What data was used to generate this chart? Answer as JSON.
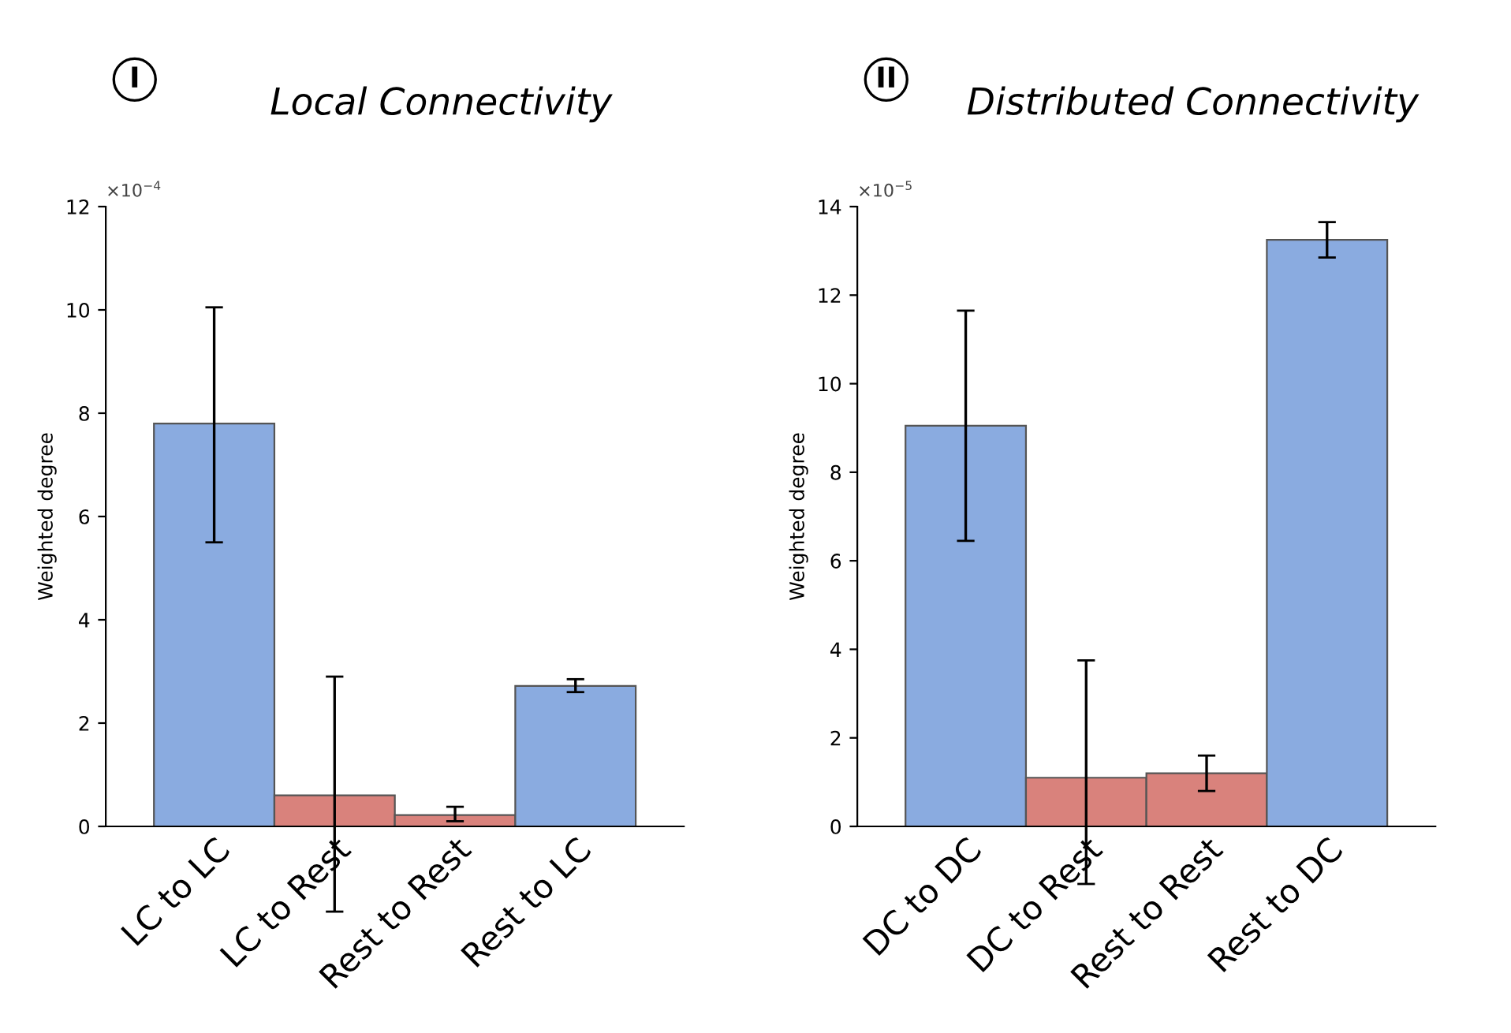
{
  "chart_data": [
    {
      "type": "bar",
      "title": "Local Connectivity",
      "ylabel": "Weighted degree",
      "annotations": [
        "I",
        "×10$^{−4}$"
      ],
      "categories": [
        "LC to LC",
        "LC to Rest",
        "Rest to Rest",
        "Rest to LC"
      ],
      "values": [
        7.8,
        0.6,
        0.22,
        2.72
      ],
      "colors": [
        "#8aabe0",
        "#d9827c",
        "#d9827c",
        "#8aabe0"
      ],
      "errors": [
        [
          5.5,
          10.05
        ],
        [
          -1.65,
          2.9
        ],
        [
          0.1,
          0.38
        ],
        [
          2.6,
          2.85
        ]
      ],
      "ylim": [
        0,
        12
      ],
      "yticks": [
        0,
        2,
        4,
        6,
        8,
        10,
        12
      ],
      "grid": false
    },
    {
      "type": "bar",
      "title": "Distributed Connectivity",
      "ylabel": "Weighted degree",
      "annotations": [
        "II",
        "×10$^{−5}$"
      ],
      "categories": [
        "DC to DC",
        "DC to Rest",
        "Rest to Rest",
        "Rest to DC"
      ],
      "values": [
        9.05,
        1.1,
        1.2,
        13.25
      ],
      "colors": [
        "#8aabe0",
        "#d9827c",
        "#d9827c",
        "#8aabe0"
      ],
      "errors": [
        [
          6.45,
          11.65
        ],
        [
          -1.3,
          3.75
        ],
        [
          0.8,
          1.6
        ],
        [
          12.85,
          13.65
        ]
      ],
      "ylim": [
        0,
        14
      ],
      "yticks": [
        0,
        2,
        4,
        6,
        8,
        10,
        12,
        14
      ],
      "grid": false
    }
  ]
}
